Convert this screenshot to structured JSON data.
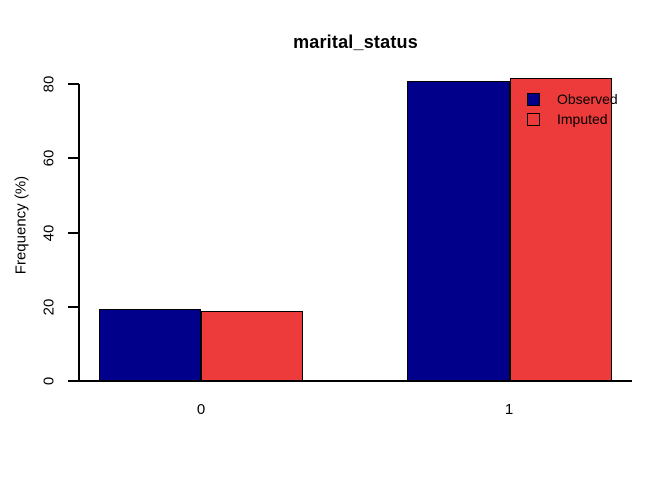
{
  "chart_data": {
    "type": "bar",
    "title": "marital_status",
    "ylabel": "Frequency (%)",
    "xlabel": "",
    "categories": [
      "0",
      "1"
    ],
    "series": [
      {
        "name": "Observed",
        "color": "#00008B",
        "values": [
          19.5,
          80.7
        ]
      },
      {
        "name": "Imputed",
        "color": "#ED3B3B",
        "values": [
          18.8,
          81.5
        ]
      }
    ],
    "ylim": [
      0,
      80
    ],
    "ytick_labels": [
      "0",
      "20",
      "40",
      "60",
      "80"
    ],
    "grid": false,
    "legend_position": "top-right-inside",
    "legend": [
      {
        "label": "Observed",
        "swatch": "filled"
      },
      {
        "label": "Imputed",
        "swatch": "open"
      }
    ],
    "colors": {
      "axis": "#000000",
      "background": "#ffffff"
    }
  }
}
